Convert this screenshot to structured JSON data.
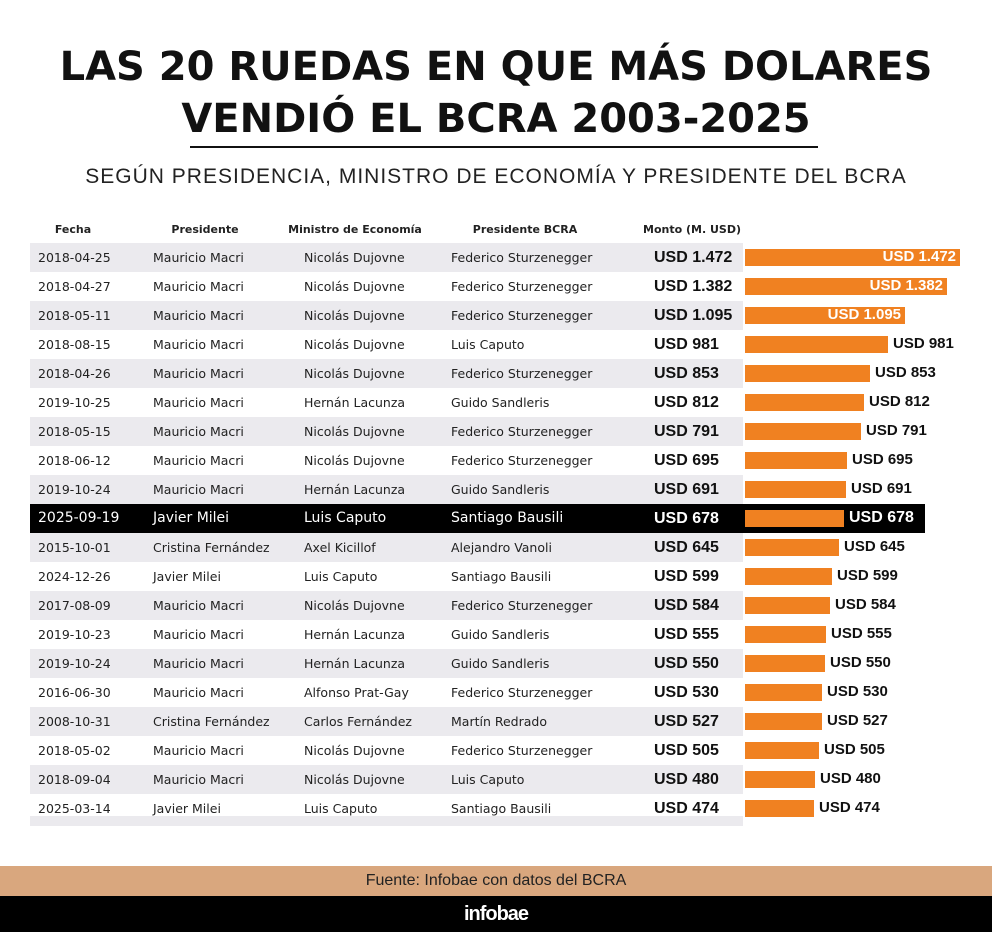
{
  "title_line1": "LAS 20 RUEDAS EN QUE MÁS DOLARES",
  "title_line2": "VENDIÓ EL BCRA 2003-2025",
  "subtitle": "SEGÚN PRESIDENCIA, MINISTRO DE ECONOMÍA Y PRESIDENTE DEL BCRA",
  "headers": [
    "Fecha",
    "Presidente",
    "Ministro de Economía",
    "Presidente BCRA",
    "Monto (M. USD)"
  ],
  "source": "Fuente: Infobae con datos del BCRA",
  "brand": "infobae",
  "colors": {
    "bar": "#f08121",
    "highlight_row": "#000000",
    "stripe": "#ebeaee",
    "source_band": "#d9a77e"
  },
  "chart_data": {
    "type": "bar",
    "orientation": "horizontal",
    "title": "LAS 20 RUEDAS EN QUE MÁS DOLARES VENDIÓ EL BCRA 2003-2025",
    "unit": "M. USD",
    "highlight_index": 9,
    "rows": [
      {
        "fecha": "2018-04-25",
        "presidente": "Mauricio Macri",
        "ministro": "Nicolás Dujovne",
        "bcra": "Federico Sturzenegger",
        "monto": "USD 1.472",
        "value": 1472
      },
      {
        "fecha": "2018-04-27",
        "presidente": "Mauricio Macri",
        "ministro": "Nicolás Dujovne",
        "bcra": "Federico Sturzenegger",
        "monto": "USD 1.382",
        "value": 1382
      },
      {
        "fecha": "2018-05-11",
        "presidente": "Mauricio Macri",
        "ministro": "Nicolás Dujovne",
        "bcra": "Federico Sturzenegger",
        "monto": "USD 1.095",
        "value": 1095
      },
      {
        "fecha": "2018-08-15",
        "presidente": "Mauricio Macri",
        "ministro": "Nicolás Dujovne",
        "bcra": "Luis Caputo",
        "monto": "USD 981",
        "value": 981
      },
      {
        "fecha": "2018-04-26",
        "presidente": "Mauricio Macri",
        "ministro": "Nicolás Dujovne",
        "bcra": "Federico Sturzenegger",
        "monto": "USD 853",
        "value": 853
      },
      {
        "fecha": "2019-10-25",
        "presidente": "Mauricio Macri",
        "ministro": "Hernán Lacunza",
        "bcra": "Guido Sandleris",
        "monto": "USD 812",
        "value": 812
      },
      {
        "fecha": "2018-05-15",
        "presidente": "Mauricio Macri",
        "ministro": "Nicolás Dujovne",
        "bcra": "Federico Sturzenegger",
        "monto": "USD 791",
        "value": 791
      },
      {
        "fecha": "2018-06-12",
        "presidente": "Mauricio Macri",
        "ministro": "Nicolás Dujovne",
        "bcra": "Federico Sturzenegger",
        "monto": "USD 695",
        "value": 695
      },
      {
        "fecha": "2019-10-24",
        "presidente": "Mauricio Macri",
        "ministro": "Hernán Lacunza",
        "bcra": "Guido Sandleris",
        "monto": "USD 691",
        "value": 691
      },
      {
        "fecha": "2025-09-19",
        "presidente": "Javier Milei",
        "ministro": "Luis Caputo",
        "bcra": "Santiago Bausili",
        "monto": "USD 678",
        "value": 678
      },
      {
        "fecha": "2015-10-01",
        "presidente": "Cristina Fernández",
        "ministro": "Axel Kicillof",
        "bcra": "Alejandro Vanoli",
        "monto": "USD 645",
        "value": 645
      },
      {
        "fecha": "2024-12-26",
        "presidente": "Javier Milei",
        "ministro": "Luis Caputo",
        "bcra": "Santiago Bausili",
        "monto": "USD 599",
        "value": 599
      },
      {
        "fecha": "2017-08-09",
        "presidente": "Mauricio Macri",
        "ministro": "Nicolás Dujovne",
        "bcra": "Federico Sturzenegger",
        "monto": "USD 584",
        "value": 584
      },
      {
        "fecha": "2019-10-23",
        "presidente": "Mauricio Macri",
        "ministro": "Hernán Lacunza",
        "bcra": "Guido Sandleris",
        "monto": "USD 555",
        "value": 555
      },
      {
        "fecha": "2019-10-24",
        "presidente": "Mauricio Macri",
        "ministro": "Hernán Lacunza",
        "bcra": "Guido Sandleris",
        "monto": "USD 550",
        "value": 550
      },
      {
        "fecha": "2016-06-30",
        "presidente": "Mauricio Macri",
        "ministro": "Alfonso Prat-Gay",
        "bcra": "Federico Sturzenegger",
        "monto": "USD 530",
        "value": 530
      },
      {
        "fecha": "2008-10-31",
        "presidente": "Cristina Fernández",
        "ministro": "Carlos Fernández",
        "bcra": "Martín Redrado",
        "monto": "USD 527",
        "value": 527
      },
      {
        "fecha": "2018-05-02",
        "presidente": "Mauricio Macri",
        "ministro": "Nicolás Dujovne",
        "bcra": "Federico Sturzenegger",
        "monto": "USD 505",
        "value": 505
      },
      {
        "fecha": "2018-09-04",
        "presidente": "Mauricio Macri",
        "ministro": "Nicolás Dujovne",
        "bcra": "Luis Caputo",
        "monto": "USD 480",
        "value": 480
      },
      {
        "fecha": "2025-03-14",
        "presidente": "Javier Milei",
        "ministro": "Luis Caputo",
        "bcra": "Santiago Bausili",
        "monto": "USD 474",
        "value": 474
      }
    ],
    "xlim": [
      0,
      1472
    ]
  }
}
